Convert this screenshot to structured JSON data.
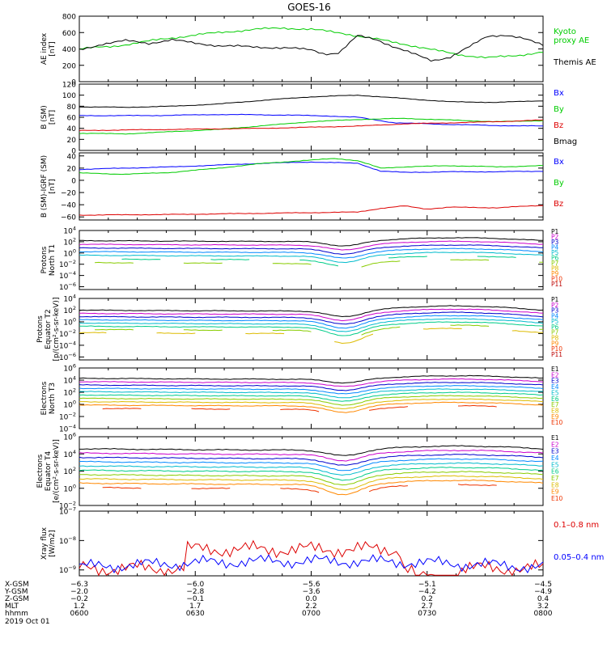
{
  "title": "GOES-16",
  "chart_data": {
    "type": "line",
    "panels": [
      {
        "id": "ae",
        "ylabel": [
          "AE index",
          "[nT]"
        ],
        "ylim": [
          0,
          800
        ],
        "scale": "linear",
        "yticks": [
          0,
          200,
          400,
          600,
          800
        ],
        "ytick_labels": [
          "0",
          "200",
          "400",
          "600",
          "800"
        ],
        "series": [
          {
            "name": "Kyoto proxy AE",
            "legend_lines": [
              "Kyoto",
              "proxy AE"
            ],
            "color": "#00cc00",
            "x": [
              0,
              0.07,
              0.12,
              0.18,
              0.25,
              0.32,
              0.38,
              0.44,
              0.5,
              0.57,
              0.63,
              0.7,
              0.76,
              0.82,
              0.88,
              0.94,
              1.0
            ],
            "y": [
              400,
              430,
              470,
              520,
              570,
              610,
              640,
              655,
              640,
              590,
              530,
              460,
              390,
              330,
              290,
              320,
              360
            ]
          },
          {
            "name": "Themis AE",
            "legend_lines": [
              "Themis AE"
            ],
            "color": "#000000",
            "x": [
              0,
              0.05,
              0.1,
              0.15,
              0.2,
              0.25,
              0.3,
              0.35,
              0.4,
              0.45,
              0.5,
              0.53,
              0.56,
              0.6,
              0.64,
              0.68,
              0.72,
              0.76,
              0.8,
              0.84,
              0.88,
              0.92,
              0.96,
              1.0
            ],
            "y": [
              390,
              460,
              500,
              470,
              510,
              470,
              440,
              430,
              420,
              410,
              390,
              340,
              350,
              560,
              520,
              420,
              340,
              260,
              300,
              420,
              560,
              570,
              520,
              450
            ]
          }
        ]
      },
      {
        "id": "bsm",
        "ylabel": [
          "B (SM)",
          "[nT]"
        ],
        "ylim": [
          0,
          120
        ],
        "scale": "linear",
        "yticks": [
          0,
          20,
          40,
          60,
          80,
          100,
          120
        ],
        "ytick_labels": [
          "0",
          "20",
          "40",
          "60",
          "80",
          "100",
          "120"
        ],
        "series": [
          {
            "name": "Bx",
            "color": "#0000ff",
            "x": [
              0,
              0.15,
              0.3,
              0.45,
              0.55,
              0.6,
              0.68,
              0.8,
              0.9,
              1.0
            ],
            "y": [
              63,
              63,
              65,
              64,
              62,
              60,
              50,
              47,
              45,
              44
            ]
          },
          {
            "name": "By",
            "color": "#00cc00",
            "x": [
              0,
              0.1,
              0.2,
              0.3,
              0.4,
              0.5,
              0.6,
              0.7,
              0.8,
              0.9,
              1.0
            ],
            "y": [
              31,
              30,
              34,
              38,
              45,
              52,
              56,
              58,
              55,
              52,
              54
            ]
          },
          {
            "name": "Bz",
            "color": "#dd0000",
            "x": [
              0,
              0.2,
              0.4,
              0.6,
              0.7,
              0.8,
              0.9,
              1.0
            ],
            "y": [
              36,
              38,
              40,
              44,
              48,
              50,
              52,
              55
            ]
          },
          {
            "name": "Bmag",
            "color": "#000000",
            "x": [
              0,
              0.1,
              0.2,
              0.3,
              0.4,
              0.5,
              0.6,
              0.7,
              0.8,
              0.9,
              1.0
            ],
            "y": [
              79,
              78,
              80,
              84,
              91,
              97,
              100,
              94,
              88,
              87,
              90
            ]
          }
        ]
      },
      {
        "id": "bigrf",
        "ylabel": [
          "B (SM)-IGRF (SM)",
          "[nT]"
        ],
        "ylim": [
          -65,
          45
        ],
        "scale": "linear",
        "yticks": [
          -60,
          -40,
          -20,
          0,
          20,
          40
        ],
        "ytick_labels": [
          "−60",
          "−40",
          "−20",
          "0",
          "20",
          "40"
        ],
        "series": [
          {
            "name": "Bx",
            "color": "#0000ff",
            "x": [
              0,
              0.1,
              0.2,
              0.3,
              0.4,
              0.5,
              0.6,
              0.65,
              0.7,
              0.8,
              0.9,
              1.0
            ],
            "y": [
              18,
              20,
              22,
              25,
              28,
              30,
              28,
              15,
              13,
              14,
              14,
              15
            ]
          },
          {
            "name": "By",
            "color": "#00cc00",
            "x": [
              0,
              0.1,
              0.2,
              0.3,
              0.4,
              0.5,
              0.55,
              0.6,
              0.65,
              0.7,
              0.8,
              0.9,
              1.0
            ],
            "y": [
              12,
              10,
              13,
              20,
              28,
              33,
              36,
              32,
              20,
              22,
              24,
              22,
              24
            ]
          },
          {
            "name": "Bz",
            "color": "#dd0000",
            "x": [
              0,
              0.2,
              0.4,
              0.6,
              0.65,
              0.7,
              0.75,
              0.8,
              0.9,
              1.0
            ],
            "y": [
              -57,
              -56,
              -54,
              -52,
              -46,
              -42,
              -47,
              -44,
              -45,
              -41
            ]
          }
        ]
      },
      {
        "id": "pT1",
        "ylabel": [
          "Protons",
          "North T1"
        ],
        "ylim_exp": [
          -6.5,
          4
        ],
        "scale": "log",
        "yticks": [
          -6,
          -4,
          -2,
          0,
          2,
          4
        ],
        "legend": [
          "P1",
          "P2",
          "P3",
          "P4",
          "P5",
          "P6",
          "P7",
          "P8",
          "P9",
          "P10",
          "P11"
        ],
        "n_lines": 7,
        "base_exp": 2.2,
        "step": 0.65,
        "dip_exp": 1.3,
        "tail_amp": 0.6,
        "gap_from": 5
      },
      {
        "id": "pT2",
        "ylabel": [
          "Protons",
          "Equator T2",
          "[p/(cm²-s-sr-keV)]"
        ],
        "ylim_exp": [
          -6.5,
          4
        ],
        "scale": "log",
        "yticks": [
          -6,
          -4,
          -2,
          0,
          2,
          4
        ],
        "legend": [
          "P1",
          "P2",
          "P3",
          "P4",
          "P5",
          "P6",
          "P7",
          "P8",
          "P9",
          "P10",
          "P11"
        ],
        "n_lines": 8,
        "base_exp": 2.0,
        "step": 0.55,
        "dip_exp": 1.6,
        "tail_amp": 0.8,
        "gap_from": 6
      },
      {
        "id": "eT3",
        "ylabel": [
          "Electrons",
          "North T3"
        ],
        "ylim_exp": [
          -4,
          6
        ],
        "scale": "log",
        "yticks": [
          -4,
          -2,
          0,
          2,
          4,
          6
        ],
        "legend": [
          "E1",
          "E2",
          "E3",
          "E4",
          "E5",
          "E6",
          "E7",
          "E8",
          "E9",
          "E10"
        ],
        "n_lines": 10,
        "base_exp": 4.3,
        "step": 0.55,
        "dip_exp": 1.0,
        "tail_amp": 0.5,
        "gap_from": 9
      },
      {
        "id": "eT4",
        "ylabel": [
          "Electrons",
          "Equator T4",
          "[e/(cm²-s-sr-keV)]"
        ],
        "ylim_exp": [
          -2,
          6
        ],
        "scale": "log",
        "yticks": [
          -2,
          0,
          2,
          4,
          6
        ],
        "legend": [
          "E1",
          "E2",
          "E3",
          "E4",
          "E5",
          "E6",
          "E7",
          "E8",
          "E9",
          "E10"
        ],
        "n_lines": 10,
        "base_exp": 4.6,
        "step": 0.5,
        "dip_exp": 1.1,
        "tail_amp": 0.4,
        "gap_from": 9
      },
      {
        "id": "xray",
        "ylabel": [
          "Xray flux",
          "[W/m2]"
        ],
        "ylim_exp": [
          -9.2,
          -7
        ],
        "scale": "log",
        "yticks": [
          -9,
          -8,
          -7
        ],
        "series": [
          {
            "name": "0.1–0.8 nm",
            "color": "#dd0000"
          },
          {
            "name": "0.05–0.4 nm",
            "color": "#0000ff"
          }
        ]
      }
    ],
    "legend_colors": [
      "#000000",
      "#cc00cc",
      "#0000cc",
      "#0088ff",
      "#00bbcc",
      "#00cc88",
      "#88cc00",
      "#ddbb00",
      "#ff8800",
      "#ee3300",
      "#bb0000"
    ],
    "xaxis": {
      "row_labels": [
        "X-GSM",
        "Y-GSM",
        "Z-GSM",
        "MLT",
        "hhmm",
        "2019 Oct 01"
      ],
      "ticks": [
        {
          "pos": 0.0,
          "vals": [
            "−6.3",
            "−2.0",
            "−0.2",
            "1.2",
            "0600"
          ]
        },
        {
          "pos": 0.25,
          "vals": [
            "−6.0",
            "−2.8",
            "−0.1",
            "1.7",
            "0630"
          ]
        },
        {
          "pos": 0.5,
          "vals": [
            "−5.6",
            "−3.6",
            "0.0",
            "2.2",
            "0700"
          ]
        },
        {
          "pos": 0.75,
          "vals": [
            "−5.1",
            "−4.2",
            "0.2",
            "2.7",
            "0730"
          ]
        },
        {
          "pos": 1.0,
          "vals": [
            "−4.5",
            "−4.9",
            "0.4",
            "3.2",
            "0800"
          ]
        }
      ]
    }
  }
}
